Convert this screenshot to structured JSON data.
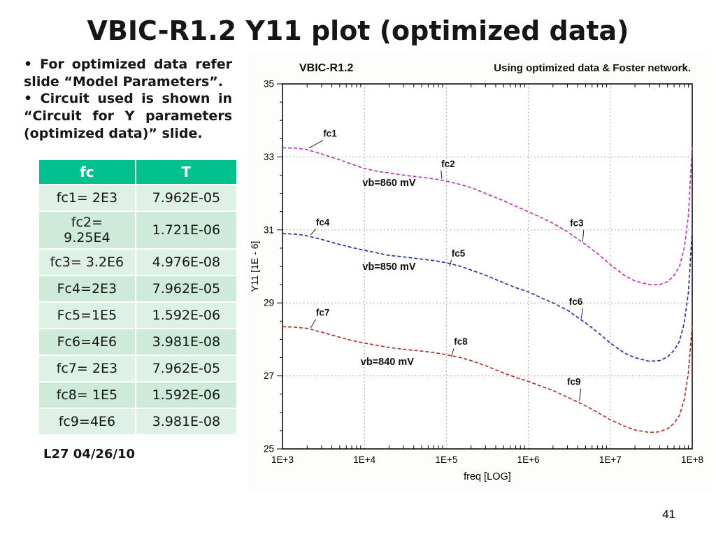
{
  "slide": {
    "title": "VBIC-R1.2 Y11 plot (optimized data)",
    "footer_left": "L27 04/26/10",
    "page_number": "41"
  },
  "bullets": [
    "• For optimized data refer slide “Model Parameters”.",
    "• Circuit used is shown in “Circuit for Y parameters (optimized data)” slide."
  ],
  "table": {
    "headers": [
      "fc",
      "T"
    ],
    "header_bg": "#00c08d",
    "row_bg_a": "#ddf1e6",
    "row_bg_b": "#cdeadb",
    "rows": [
      {
        "fc": "fc1= 2E3",
        "tau": "7.962E-05"
      },
      {
        "fc": "fc2=\n9.25E4",
        "tau": "1.721E-06"
      },
      {
        "fc": "fc3= 3.2E6",
        "tau": "4.976E-08"
      },
      {
        "fc": "Fc4=2E3",
        "tau": "7.962E-05"
      },
      {
        "fc": "Fc5=1E5",
        "tau": "1.592E-06"
      },
      {
        "fc": "Fc6=4E6",
        "tau": "3.981E-08"
      },
      {
        "fc": "fc7= 2E3",
        "tau": "7.962E-05"
      },
      {
        "fc": "fc8= 1E5",
        "tau": "1.592E-06"
      },
      {
        "fc": "fc9=4E6",
        "tau": "3.981E-08"
      }
    ]
  },
  "chart_data": {
    "type": "line",
    "title_left": "VBIC-R1.2",
    "title_right": "Using optimized data & Foster network.",
    "xlabel": "freq  [LOG]",
    "ylabel": "Y11 [1E - 6]",
    "x_scale": "log",
    "xlim": [
      1000,
      100000000
    ],
    "ylim": [
      25,
      35
    ],
    "x_ticks": [
      "1E+3",
      "1E+4",
      "1E+5",
      "1E+6",
      "1E+7",
      "1E+8"
    ],
    "y_ticks": [
      35,
      33,
      31,
      29,
      27,
      25
    ],
    "grid": true,
    "line_style": "dashed",
    "series": [
      {
        "name": "vb=860 mV",
        "color": "#c435b8",
        "points": [
          [
            1000,
            33.25
          ],
          [
            1500,
            33.24
          ],
          [
            2000,
            33.2
          ],
          [
            3000,
            33.08
          ],
          [
            5000,
            32.92
          ],
          [
            7000,
            32.8
          ],
          [
            10000,
            32.68
          ],
          [
            15000,
            32.6
          ],
          [
            20000,
            32.56
          ],
          [
            30000,
            32.5
          ],
          [
            50000,
            32.44
          ],
          [
            70000,
            32.4
          ],
          [
            100000,
            32.34
          ],
          [
            150000,
            32.24
          ],
          [
            200000,
            32.16
          ],
          [
            300000,
            32.0
          ],
          [
            500000,
            31.8
          ],
          [
            700000,
            31.65
          ],
          [
            1000000,
            31.5
          ],
          [
            1500000,
            31.32
          ],
          [
            2000000,
            31.18
          ],
          [
            3000000,
            30.95
          ],
          [
            5000000,
            30.6
          ],
          [
            7000000,
            30.35
          ],
          [
            10000000,
            30.05
          ],
          [
            15000000,
            29.75
          ],
          [
            20000000,
            29.6
          ],
          [
            30000000,
            29.5
          ],
          [
            40000000,
            29.5
          ],
          [
            50000000,
            29.58
          ],
          [
            60000000,
            29.75
          ],
          [
            70000000,
            30.0
          ],
          [
            80000000,
            30.5
          ],
          [
            90000000,
            31.4
          ],
          [
            100000000,
            33.3
          ]
        ]
      },
      {
        "name": "vb=850 mV",
        "color": "#2433a0",
        "points": [
          [
            1000,
            30.9
          ],
          [
            1500,
            30.88
          ],
          [
            2000,
            30.84
          ],
          [
            3000,
            30.74
          ],
          [
            5000,
            30.6
          ],
          [
            7000,
            30.52
          ],
          [
            10000,
            30.44
          ],
          [
            15000,
            30.36
          ],
          [
            20000,
            30.3
          ],
          [
            30000,
            30.26
          ],
          [
            50000,
            30.2
          ],
          [
            70000,
            30.16
          ],
          [
            100000,
            30.1
          ],
          [
            150000,
            30.0
          ],
          [
            200000,
            29.9
          ],
          [
            300000,
            29.76
          ],
          [
            500000,
            29.55
          ],
          [
            700000,
            29.42
          ],
          [
            1000000,
            29.3
          ],
          [
            1500000,
            29.12
          ],
          [
            2000000,
            29.0
          ],
          [
            3000000,
            28.8
          ],
          [
            5000000,
            28.45
          ],
          [
            7000000,
            28.2
          ],
          [
            10000000,
            27.9
          ],
          [
            15000000,
            27.62
          ],
          [
            20000000,
            27.5
          ],
          [
            30000000,
            27.4
          ],
          [
            40000000,
            27.42
          ],
          [
            50000000,
            27.52
          ],
          [
            60000000,
            27.7
          ],
          [
            70000000,
            27.95
          ],
          [
            80000000,
            28.45
          ],
          [
            90000000,
            29.3
          ],
          [
            100000000,
            31.0
          ]
        ]
      },
      {
        "name": "vb=840 mV",
        "color": "#b23226",
        "points": [
          [
            1000,
            28.35
          ],
          [
            1500,
            28.33
          ],
          [
            2000,
            28.3
          ],
          [
            3000,
            28.2
          ],
          [
            5000,
            28.06
          ],
          [
            7000,
            27.97
          ],
          [
            10000,
            27.9
          ],
          [
            15000,
            27.83
          ],
          [
            20000,
            27.78
          ],
          [
            30000,
            27.73
          ],
          [
            50000,
            27.68
          ],
          [
            70000,
            27.64
          ],
          [
            100000,
            27.58
          ],
          [
            150000,
            27.5
          ],
          [
            200000,
            27.42
          ],
          [
            300000,
            27.28
          ],
          [
            500000,
            27.08
          ],
          [
            700000,
            26.96
          ],
          [
            1000000,
            26.85
          ],
          [
            1500000,
            26.7
          ],
          [
            2000000,
            26.6
          ],
          [
            3000000,
            26.42
          ],
          [
            5000000,
            26.18
          ],
          [
            7000000,
            26.0
          ],
          [
            10000000,
            25.8
          ],
          [
            15000000,
            25.62
          ],
          [
            20000000,
            25.52
          ],
          [
            30000000,
            25.45
          ],
          [
            40000000,
            25.47
          ],
          [
            50000000,
            25.55
          ],
          [
            60000000,
            25.7
          ],
          [
            70000000,
            25.92
          ],
          [
            80000000,
            26.35
          ],
          [
            90000000,
            27.1
          ],
          [
            100000000,
            28.4
          ]
        ]
      }
    ],
    "annotations": [
      {
        "text": "fc1",
        "x": 3800,
        "y": 33.55,
        "leader": [
          2100,
          33.24
        ]
      },
      {
        "text": "fc2",
        "x": 105000,
        "y": 32.72,
        "leader": [
          88000,
          32.4
        ]
      },
      {
        "text": "fc3",
        "x": 3900000,
        "y": 31.1,
        "leader": [
          4600000,
          30.68
        ]
      },
      {
        "text": "vb=860 mV",
        "x": 20000,
        "y": 32.2,
        "bold": true
      },
      {
        "text": "fc4",
        "x": 3100,
        "y": 31.12,
        "leader": [
          2200,
          30.86
        ]
      },
      {
        "text": "fc5",
        "x": 140000,
        "y": 30.27,
        "leader": [
          110000,
          30.0
        ]
      },
      {
        "text": "fc6",
        "x": 3800000,
        "y": 28.95,
        "leader": [
          4400000,
          28.56
        ]
      },
      {
        "text": "vb=850 mV",
        "x": 20000,
        "y": 29.9,
        "bold": true
      },
      {
        "text": "fc7",
        "x": 3100,
        "y": 28.65,
        "leader": [
          2200,
          28.31
        ]
      },
      {
        "text": "fc8",
        "x": 150000,
        "y": 27.85,
        "leader": [
          115000,
          27.52
        ]
      },
      {
        "text": "fc9",
        "x": 3600000,
        "y": 26.75,
        "leader": [
          4200000,
          26.32
        ]
      },
      {
        "text": "vb=840 mV",
        "x": 19000,
        "y": 27.3,
        "bold": true
      }
    ]
  }
}
